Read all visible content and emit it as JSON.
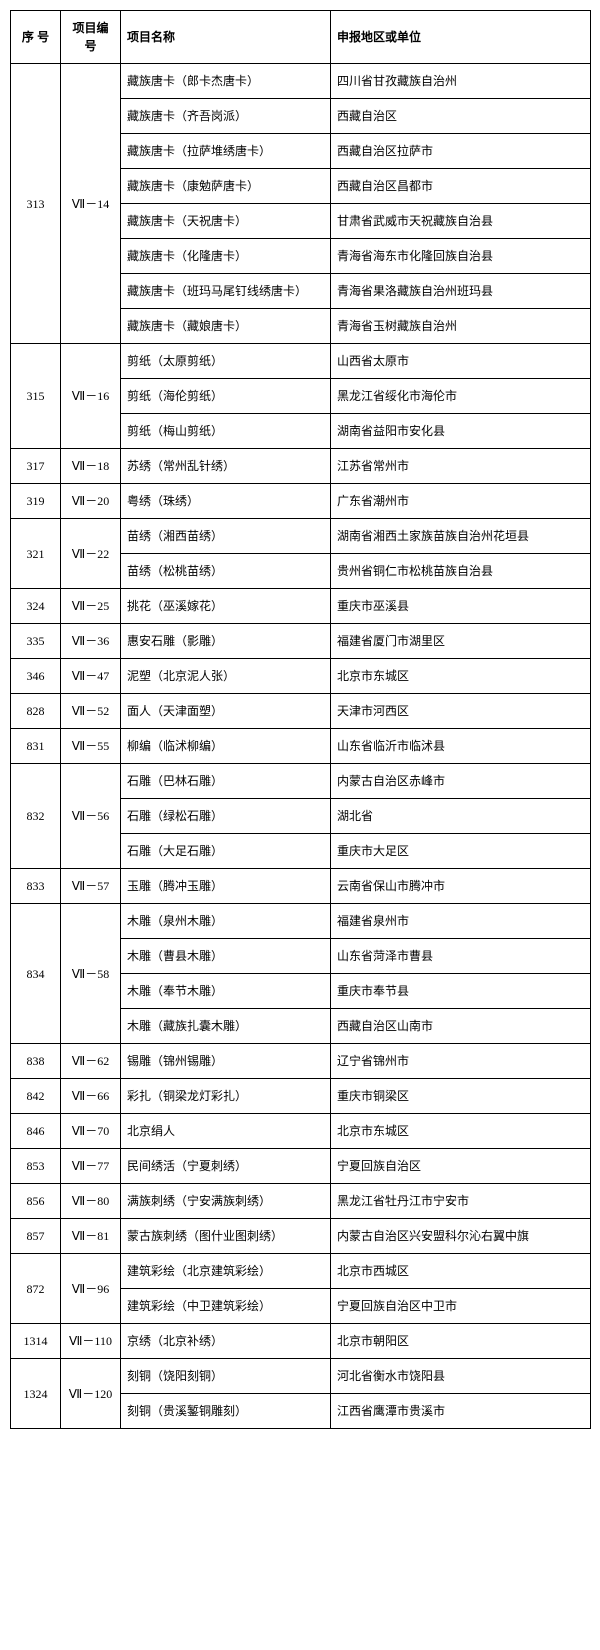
{
  "table": {
    "columns": [
      {
        "key": "seq",
        "label": "序 号",
        "class": "col-seq"
      },
      {
        "key": "code",
        "label": "项目编号",
        "class": "col-code"
      },
      {
        "key": "name",
        "label": "项目名称",
        "class": "col-name"
      },
      {
        "key": "region",
        "label": "申报地区或单位",
        "class": "col-region"
      }
    ],
    "rows": [
      {
        "seq": "313",
        "code": "Ⅶ－14",
        "seqSpan": 8,
        "name": "藏族唐卡（郎卡杰唐卡）",
        "region": "四川省甘孜藏族自治州"
      },
      {
        "seq": "",
        "code": "",
        "name": "藏族唐卡（齐吾岗派）",
        "region": "西藏自治区"
      },
      {
        "seq": "",
        "code": "",
        "name": "藏族唐卡（拉萨堆绣唐卡）",
        "region": "西藏自治区拉萨市"
      },
      {
        "seq": "",
        "code": "",
        "name": "藏族唐卡（康勉萨唐卡）",
        "region": "西藏自治区昌都市"
      },
      {
        "seq": "",
        "code": "",
        "name": "藏族唐卡（天祝唐卡）",
        "region": "甘肃省武威市天祝藏族自治县"
      },
      {
        "seq": "",
        "code": "",
        "name": "藏族唐卡（化隆唐卡）",
        "region": "青海省海东市化隆回族自治县"
      },
      {
        "seq": "",
        "code": "",
        "name": "藏族唐卡（班玛马尾钉线绣唐卡）",
        "region": "青海省果洛藏族自治州班玛县"
      },
      {
        "seq": "",
        "code": "",
        "name": "藏族唐卡（藏娘唐卡）",
        "region": "青海省玉树藏族自治州"
      },
      {
        "seq": "315",
        "code": "Ⅶ－16",
        "seqSpan": 3,
        "name": "剪纸（太原剪纸）",
        "region": "山西省太原市"
      },
      {
        "seq": "",
        "code": "",
        "name": "剪纸（海伦剪纸）",
        "region": "黑龙江省绥化市海伦市"
      },
      {
        "seq": "",
        "code": "",
        "name": "剪纸（梅山剪纸）",
        "region": "湖南省益阳市安化县"
      },
      {
        "seq": "317",
        "code": "Ⅶ－18",
        "name": "苏绣（常州乱针绣）",
        "region": "江苏省常州市"
      },
      {
        "seq": "319",
        "code": "Ⅶ－20",
        "name": "粤绣（珠绣）",
        "region": "广东省潮州市"
      },
      {
        "seq": "321",
        "code": "Ⅶ－22",
        "seqSpan": 2,
        "name": "苗绣（湘西苗绣）",
        "region": "湖南省湘西土家族苗族自治州花垣县"
      },
      {
        "seq": "",
        "code": "",
        "name": "苗绣（松桃苗绣）",
        "region": "贵州省铜仁市松桃苗族自治县"
      },
      {
        "seq": "324",
        "code": "Ⅶ－25",
        "name": "挑花（巫溪嫁花）",
        "region": "重庆市巫溪县"
      },
      {
        "seq": "335",
        "code": "Ⅶ－36",
        "name": "惠安石雕（影雕）",
        "region": "福建省厦门市湖里区"
      },
      {
        "seq": "346",
        "code": "Ⅶ－47",
        "name": "泥塑（北京泥人张）",
        "region": "北京市东城区"
      },
      {
        "seq": "828",
        "code": "Ⅶ－52",
        "name": "面人（天津面塑）",
        "region": "天津市河西区"
      },
      {
        "seq": "831",
        "code": "Ⅶ－55",
        "name": "柳编（临沭柳编）",
        "region": "山东省临沂市临沭县"
      },
      {
        "seq": "832",
        "code": "Ⅶ－56",
        "seqSpan": 3,
        "name": "石雕（巴林石雕）",
        "region": "内蒙古自治区赤峰市"
      },
      {
        "seq": "",
        "code": "",
        "name": "石雕（绿松石雕）",
        "region": "湖北省"
      },
      {
        "seq": "",
        "code": "",
        "name": "石雕（大足石雕）",
        "region": "重庆市大足区"
      },
      {
        "seq": "833",
        "code": "Ⅶ－57",
        "name": "玉雕（腾冲玉雕）",
        "region": "云南省保山市腾冲市"
      },
      {
        "seq": "834",
        "code": "Ⅶ－58",
        "seqSpan": 4,
        "name": "木雕（泉州木雕）",
        "region": "福建省泉州市"
      },
      {
        "seq": "",
        "code": "",
        "name": "木雕（曹县木雕）",
        "region": "山东省菏泽市曹县"
      },
      {
        "seq": "",
        "code": "",
        "name": "木雕（奉节木雕）",
        "region": "重庆市奉节县"
      },
      {
        "seq": "",
        "code": "",
        "name": "木雕（藏族扎囊木雕）",
        "region": "西藏自治区山南市"
      },
      {
        "seq": "838",
        "code": "Ⅶ－62",
        "name": "锡雕（锦州锡雕）",
        "region": "辽宁省锦州市"
      },
      {
        "seq": "842",
        "code": "Ⅶ－66",
        "name": "彩扎（铜梁龙灯彩扎）",
        "region": "重庆市铜梁区"
      },
      {
        "seq": "846",
        "code": "Ⅶ－70",
        "name": "北京绢人",
        "region": "北京市东城区"
      },
      {
        "seq": "853",
        "code": "Ⅶ－77",
        "name": "民间绣活（宁夏刺绣）",
        "region": "宁夏回族自治区"
      },
      {
        "seq": "856",
        "code": "Ⅶ－80",
        "name": "满族刺绣（宁安满族刺绣）",
        "region": "黑龙江省牡丹江市宁安市"
      },
      {
        "seq": "857",
        "code": "Ⅶ－81",
        "name": "蒙古族刺绣（图什业图刺绣）",
        "region": "内蒙古自治区兴安盟科尔沁右翼中旗"
      },
      {
        "seq": "872",
        "code": "Ⅶ－96",
        "seqSpan": 2,
        "name": "建筑彩绘（北京建筑彩绘）",
        "region": "北京市西城区"
      },
      {
        "seq": "",
        "code": "",
        "name": "建筑彩绘（中卫建筑彩绘）",
        "region": "宁夏回族自治区中卫市"
      },
      {
        "seq": "1314",
        "code": "Ⅶ－110",
        "name": "京绣（北京补绣）",
        "region": "北京市朝阳区"
      },
      {
        "seq": "1324",
        "code": "Ⅶ－120",
        "seqSpan": 2,
        "name": "刻铜（饶阳刻铜）",
        "region": "河北省衡水市饶阳县"
      },
      {
        "seq": "",
        "code": "",
        "name": "刻铜（贵溪錾铜雕刻）",
        "region": "江西省鹰潭市贵溪市"
      }
    ]
  }
}
